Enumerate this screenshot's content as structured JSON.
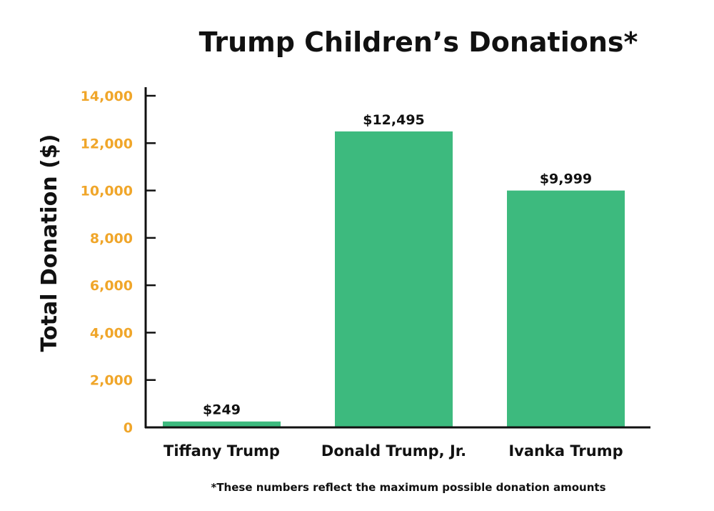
{
  "chart_data": {
    "type": "bar",
    "title": "Trump Children’s Donations*",
    "ylabel": "Total Donation ($)",
    "xlabel": "",
    "categories": [
      "Tiffany Trump",
      "Donald Trump, Jr.",
      "Ivanka Trump"
    ],
    "values": [
      249,
      12495,
      9999
    ],
    "data_labels": [
      "$249",
      "$12,495",
      "$9,999"
    ],
    "ylim": [
      0,
      14000
    ],
    "yticks": [
      0,
      2000,
      4000,
      6000,
      8000,
      10000,
      12000,
      14000
    ],
    "ytick_labels": [
      "0",
      "2,000",
      "4,000",
      "6,000",
      "8,000",
      "10,000",
      "12,000",
      "14,000"
    ],
    "grid": false,
    "footnote": "*These numbers reflect the maximum possible donation amounts",
    "colors": {
      "bar": "#3dba7e",
      "ytick": "#f0a62a",
      "text": "#111111"
    }
  }
}
